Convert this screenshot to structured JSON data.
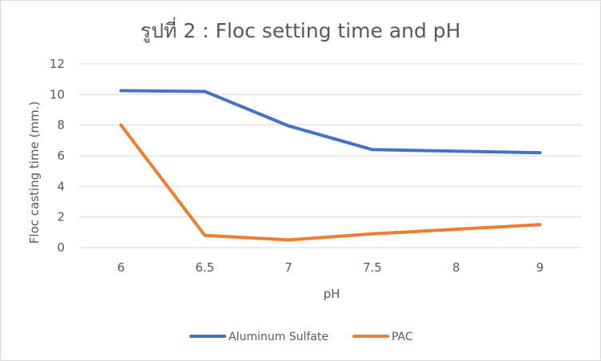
{
  "chart_data": {
    "type": "line",
    "title": "รูปที่ 2 : Floc setting time and pH",
    "xlabel": "pH",
    "ylabel": "Floc casting time (mm.)",
    "categories": [
      "6",
      "6.5",
      "7",
      "7.5",
      "8",
      "9"
    ],
    "ylim": [
      0,
      12
    ],
    "yticks": [
      0,
      2,
      4,
      6,
      8,
      10,
      12
    ],
    "grid": true,
    "legend_position": "bottom",
    "series": [
      {
        "name": "Aluminum Sulfate",
        "color": "#4472C4",
        "values": [
          10.25,
          10.2,
          7.95,
          6.4,
          null,
          6.2
        ]
      },
      {
        "name": "PAC",
        "color": "#ED7D31",
        "values": [
          8.0,
          0.8,
          0.5,
          0.9,
          null,
          1.5
        ]
      }
    ]
  }
}
